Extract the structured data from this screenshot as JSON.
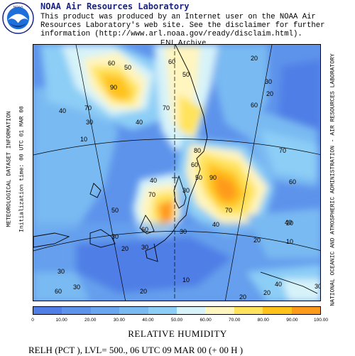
{
  "header": {
    "title": "NOAA Air Resources Laboratory",
    "line1": "This product was produced by an Internet user on the NOAA Air",
    "line2": "Resources Laboratory's web site.  See the disclaimer for further",
    "line3": "information (http://www.arl.noaa.gov/ready/disclaim.html).",
    "logo_text": "NOAA"
  },
  "map": {
    "title": "FNL Archive",
    "left_label_1": "METEOROLOGICAL DATASET INFORMATION",
    "left_label_2": "Initialization time: 00 UTC 01 MAR 00",
    "right_label": "NATIONAL OCEANIC AND ATMOSPHERIC ADMINISTRATION - AIR RESOURCES LABORATORY",
    "contour_labels": [
      {
        "text": "60"
      },
      {
        "text": "50"
      },
      {
        "text": "60"
      },
      {
        "text": "50"
      },
      {
        "text": "20"
      },
      {
        "text": "90"
      },
      {
        "text": "30"
      },
      {
        "text": "70"
      },
      {
        "text": "70"
      },
      {
        "text": "40"
      },
      {
        "text": "60"
      },
      {
        "text": "30"
      },
      {
        "text": "20"
      },
      {
        "text": "40"
      },
      {
        "text": "10"
      },
      {
        "text": "80"
      },
      {
        "text": "70"
      },
      {
        "text": "60"
      },
      {
        "text": "50"
      },
      {
        "text": "90"
      },
      {
        "text": "40"
      },
      {
        "text": "70"
      },
      {
        "text": "30"
      },
      {
        "text": "60"
      },
      {
        "text": "50"
      },
      {
        "text": "30"
      },
      {
        "text": "30"
      },
      {
        "text": "40"
      },
      {
        "text": "70"
      },
      {
        "text": "20"
      },
      {
        "text": "60"
      },
      {
        "text": "30"
      },
      {
        "text": "40"
      },
      {
        "text": "20"
      },
      {
        "text": "10"
      },
      {
        "text": "30"
      },
      {
        "text": "20"
      },
      {
        "text": "20"
      },
      {
        "text": "10"
      },
      {
        "text": "40"
      },
      {
        "text": "60"
      },
      {
        "text": "30"
      },
      {
        "text": "20"
      },
      {
        "text": "20"
      },
      {
        "text": "30"
      }
    ]
  },
  "colorbar": {
    "colors": [
      "#4f7fe6",
      "#5d93eb",
      "#6aa6ef",
      "#79baf2",
      "#8ccef6",
      "#d7f3f9",
      "#fff5bf",
      "#ffe35c",
      "#ffc21a",
      "#ff9a1a"
    ],
    "ticks": [
      "0",
      "10.00",
      "20.00",
      "30.00",
      "40.00",
      "50.00",
      "60.00",
      "70.00",
      "80.00",
      "90.00",
      "100.00"
    ],
    "label": "RELATIVE HUMIDITY"
  },
  "footer": {
    "text": "RELH (PCT ),  LVL= 500., 06 UTC 09 MAR 00 (+ 00 H )"
  }
}
